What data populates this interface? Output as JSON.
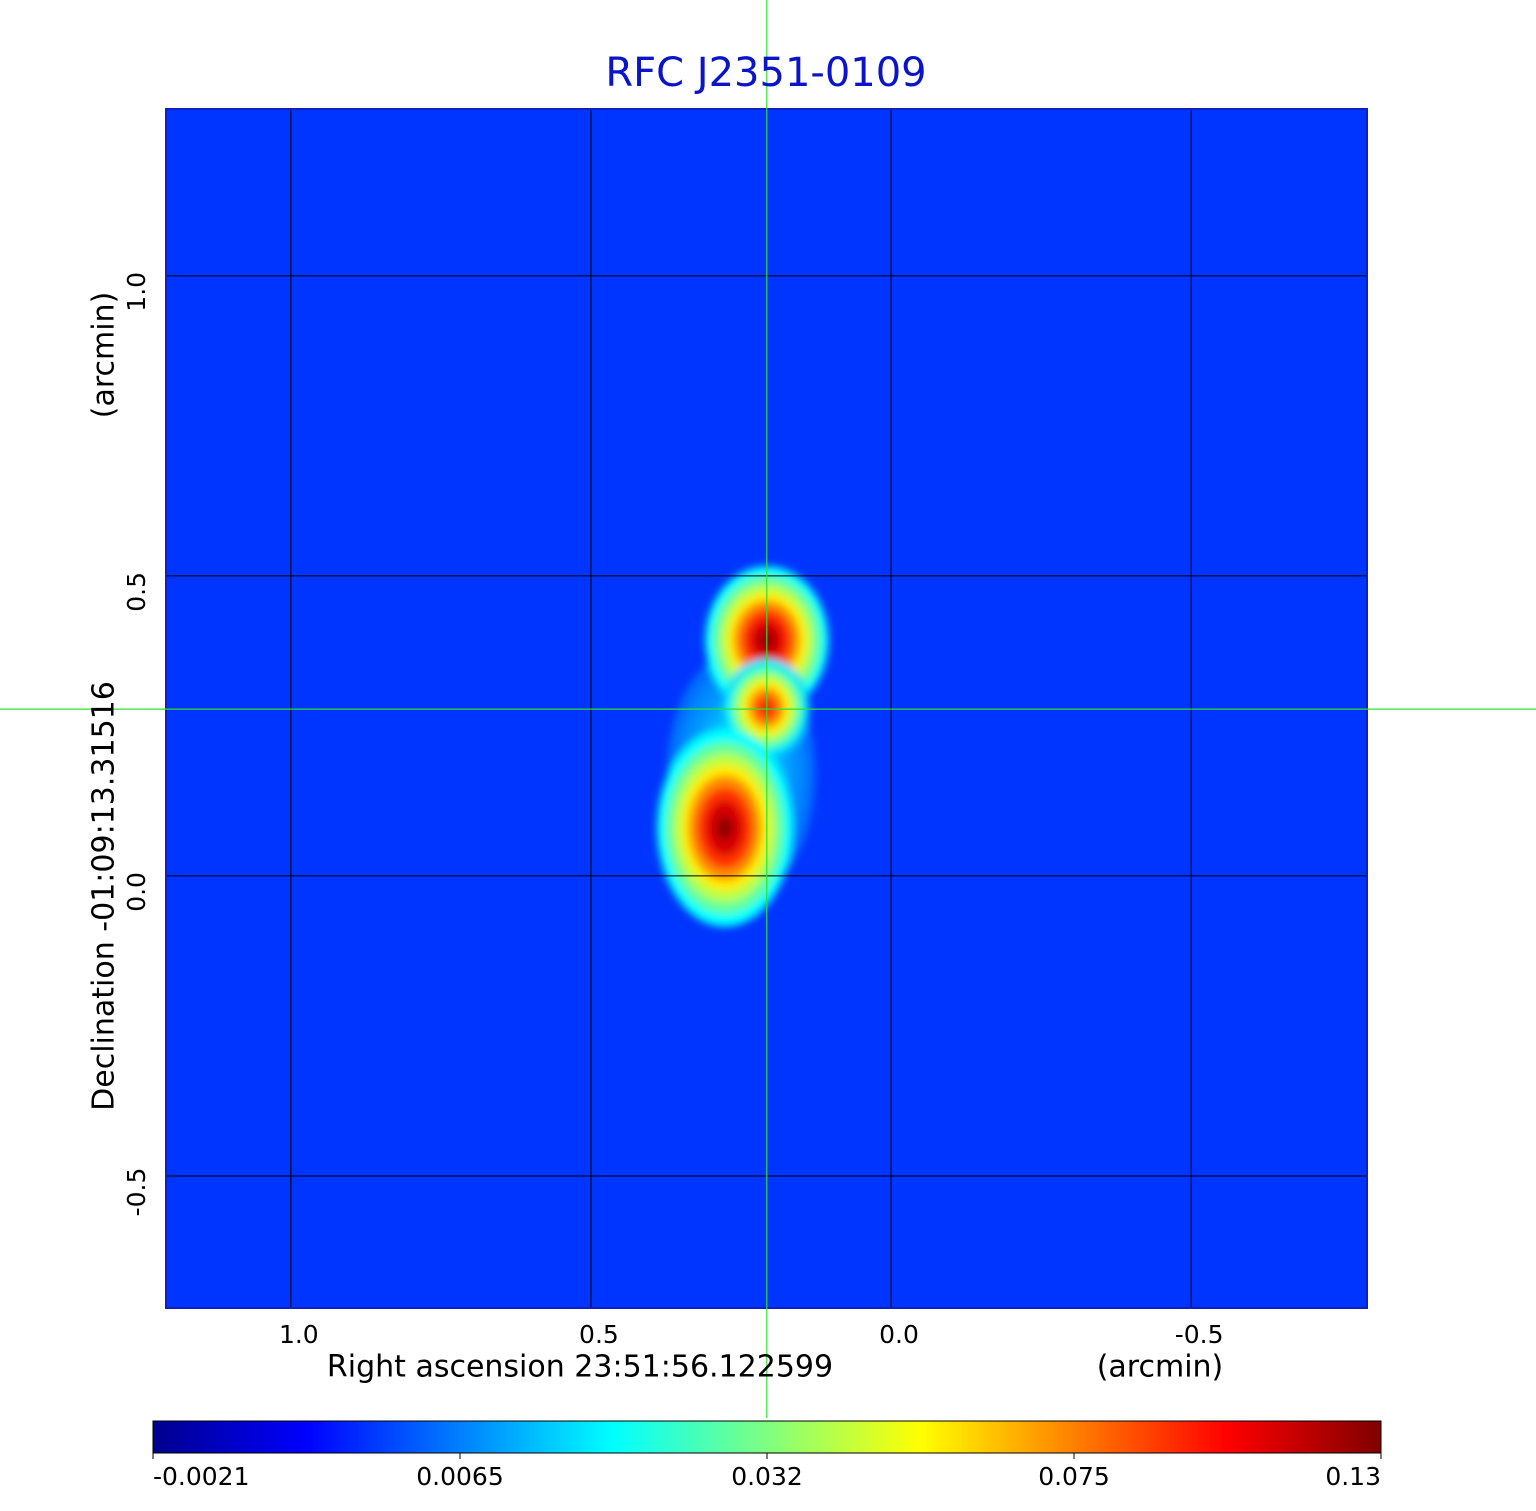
{
  "chart_data": {
    "type": "heatmap",
    "title": "RFC J2351-0109",
    "xlabel": "Right ascension  23:51:56.122599",
    "xunit": "(arcmin)",
    "ylabel": "Declination  -01:09:13.31516",
    "yunit": "(arcmin)",
    "xlim": [
      1.208,
      -0.793
    ],
    "ylim": [
      -0.72,
      1.278
    ],
    "xticks": [
      {
        "value": 1,
        "label": "1.0"
      },
      0.5,
      {
        "value": 0,
        "label": "0.0"
      },
      -0.5
    ],
    "yticks": [
      -0.5,
      {
        "value": 0,
        "label": "0.0"
      },
      0.5,
      {
        "value": 1,
        "label": "1.0"
      }
    ],
    "grid": true,
    "crosshair": {
      "x": 0.207,
      "y": 0.278
    },
    "background": 0.004,
    "sources": [
      {
        "x": 0.25,
        "y": 0.17,
        "sx": 0.06,
        "sy": 0.1,
        "peak": 0.02
      },
      {
        "x": 0.207,
        "y": 0.393,
        "sx": 0.05,
        "sy": 0.06,
        "peak": 0.13
      },
      {
        "x": 0.208,
        "y": 0.28,
        "sx": 0.035,
        "sy": 0.04,
        "peak": 0.1
      },
      {
        "x": 0.277,
        "y": 0.08,
        "sx": 0.055,
        "sy": 0.08,
        "peak": 0.13
      }
    ],
    "colorbar_ticks": [
      -0.0021,
      0.0065,
      0.032,
      0.075,
      0.13
    ],
    "colormap": "jet"
  }
}
